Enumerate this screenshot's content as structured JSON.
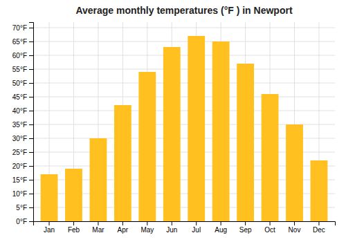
{
  "chart_data": {
    "type": "bar",
    "title": "Average monthly temperatures (°F ) in Newport",
    "categories": [
      "Jan",
      "Feb",
      "Mar",
      "Apr",
      "May",
      "Jun",
      "Jul",
      "Aug",
      "Sep",
      "Oct",
      "Nov",
      "Dec"
    ],
    "values": [
      17,
      19,
      30,
      42,
      54,
      63,
      67,
      65,
      57,
      46,
      35,
      22
    ],
    "color": "#FFC020",
    "ylim": [
      0,
      72
    ],
    "yticks": [
      {
        "value": 0,
        "label": "0°F"
      },
      {
        "value": 5,
        "label": "5°F"
      },
      {
        "value": 10,
        "label": "10°F"
      },
      {
        "value": 15,
        "label": "15°F"
      },
      {
        "value": 20,
        "label": "20°F"
      },
      {
        "value": 25,
        "label": "25°F"
      },
      {
        "value": 30,
        "label": "30°F"
      },
      {
        "value": 35,
        "label": "35°F"
      },
      {
        "value": 40,
        "label": "40°F"
      },
      {
        "value": 45,
        "label": "45°F"
      },
      {
        "value": 50,
        "label": "50°F"
      },
      {
        "value": 55,
        "label": "55°F"
      },
      {
        "value": 60,
        "label": "60°F"
      },
      {
        "value": 65,
        "label": "65°F"
      },
      {
        "value": 70,
        "label": "70°F"
      }
    ],
    "grid": true
  }
}
